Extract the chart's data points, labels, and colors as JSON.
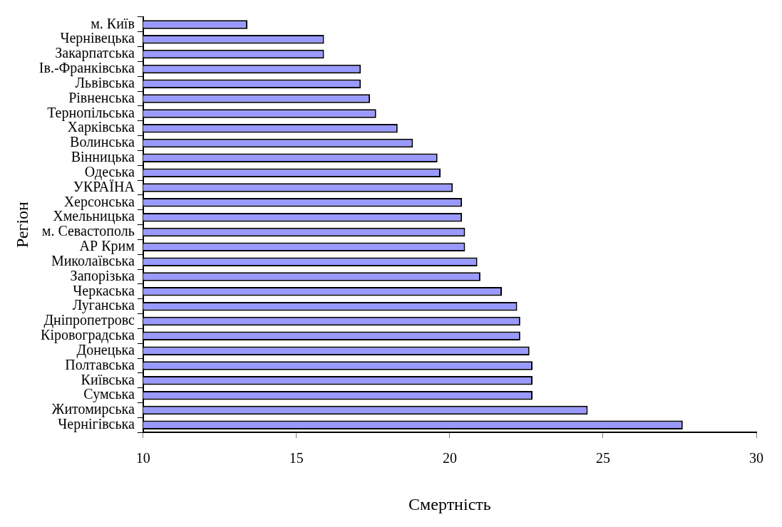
{
  "chart_data": {
    "type": "bar",
    "orientation": "horizontal",
    "xlabel": "Смертність",
    "ylabel": "Регіон",
    "categories": [
      "м. Київ",
      "Чернівецька",
      "Закарпатська",
      "Ів.-Франківська",
      "Львівська",
      "Рівненська",
      "Тернопільська",
      "Харківська",
      "Волинська",
      "Вінницька",
      "Одеська",
      "УКРАЇНА",
      "Херсонська",
      "Хмельницька",
      "м. Севастополь",
      "АР Крим",
      "Миколаївська",
      "Запорізька",
      "Черкаська",
      "Луганська",
      "Дніпропетровс",
      "Кіровоградська",
      "Донецька",
      "Полтавська",
      "Київська",
      "Сумська",
      "Житомирська",
      "Чернігівська"
    ],
    "values": [
      13.4,
      15.9,
      15.9,
      17.1,
      17.1,
      17.4,
      17.6,
      18.3,
      18.8,
      19.6,
      19.7,
      20.1,
      20.4,
      20.4,
      20.5,
      20.5,
      20.9,
      21.0,
      21.7,
      22.2,
      22.3,
      22.3,
      22.6,
      22.7,
      22.7,
      22.7,
      24.5,
      27.6
    ],
    "color": "#9999ff",
    "xlim": [
      10,
      30
    ],
    "xticks": [
      10,
      15,
      20,
      25,
      30
    ],
    "grid": false
  }
}
